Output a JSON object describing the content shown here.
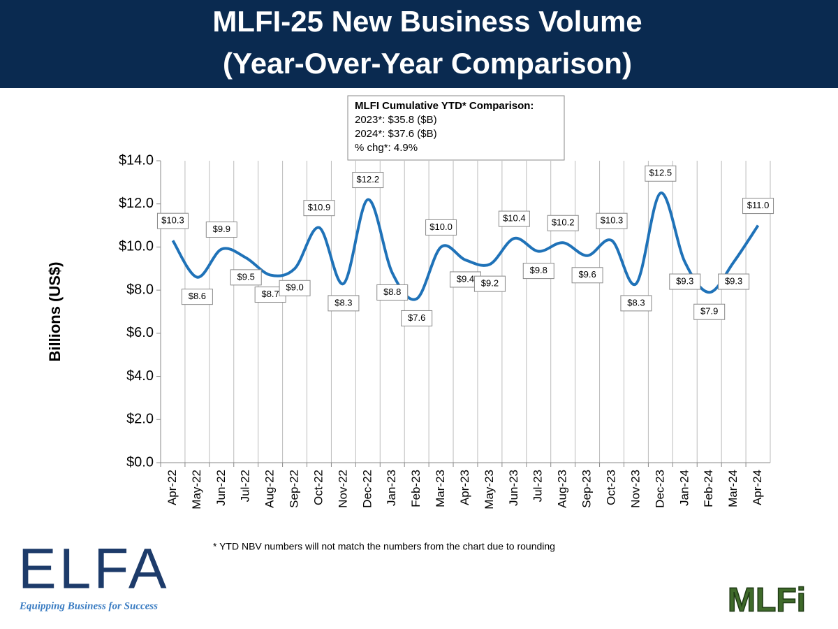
{
  "chart_data": {
    "type": "line",
    "title": "MLFI-25 New Business Volume",
    "subtitle": "(Year-Over-Year Comparison)",
    "y_label": "Billions (US$)",
    "annotation": {
      "title": "MLFI Cumulative YTD* Comparison:",
      "lines": [
        "2023*: $35.8 ($B)",
        "2024*: $37.6 ($B)",
        "% chg*:  4.9%"
      ]
    },
    "footnote": "*  YTD NBV numbers will not match the numbers from the chart due to rounding",
    "categories": [
      "Apr-22",
      "May-22",
      "Jun-22",
      "Jul-22",
      "Aug-22",
      "Sep-22",
      "Oct-22",
      "Nov-22",
      "Dec-22",
      "Jan-23",
      "Feb-23",
      "Mar-23",
      "Apr-23",
      "May-23",
      "Jun-23",
      "Jul-23",
      "Aug-23",
      "Sep-23",
      "Oct-23",
      "Nov-23",
      "Dec-23",
      "Jan-24",
      "Feb-24",
      "Mar-24",
      "Apr-24"
    ],
    "values": [
      10.3,
      8.6,
      9.9,
      9.5,
      8.7,
      9.0,
      10.9,
      8.3,
      12.2,
      8.8,
      7.6,
      10.0,
      9.4,
      9.2,
      10.4,
      9.8,
      10.2,
      9.6,
      10.3,
      8.3,
      12.5,
      9.3,
      7.9,
      9.3,
      11.0
    ],
    "value_labels": [
      "$10.3",
      "$8.6",
      "$9.9",
      "$9.5",
      "$8.7",
      "$9.0",
      "$10.9",
      "$8.3",
      "$12.2",
      "$8.8",
      "$7.6",
      "$10.0",
      "$9.4",
      "$9.2",
      "$10.4",
      "$9.8",
      "$10.2",
      "$9.6",
      "$10.3",
      "$8.3",
      "$12.5",
      "$9.3",
      "$7.9",
      "$9.3",
      "$11.0"
    ],
    "color": "#1f72b8",
    "ylim": [
      0,
      14
    ],
    "yticks": [
      {
        "value": 0,
        "label": "$0.0"
      },
      {
        "value": 2,
        "label": "$2.0"
      },
      {
        "value": 4,
        "label": "$4.0"
      },
      {
        "value": 6,
        "label": "$6.0"
      },
      {
        "value": 8,
        "label": "$8.0"
      },
      {
        "value": 10,
        "label": "$10.0"
      },
      {
        "value": 12,
        "label": "$12.0"
      },
      {
        "value": 14,
        "label": "$14.0"
      }
    ],
    "grid": true
  },
  "logos": {
    "elfa": "ELFA",
    "elfa_tagline": "Equipping Business for Success",
    "mlfi": "MLFi"
  }
}
